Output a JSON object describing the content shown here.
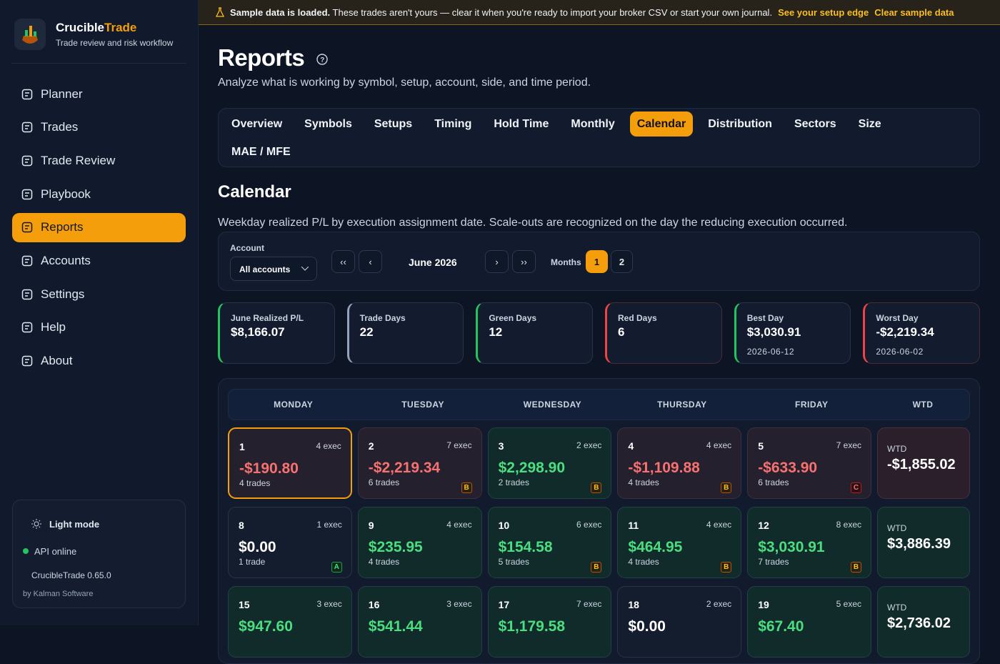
{
  "banner": {
    "bold": "Sample data is loaded.",
    "text": "These trades aren't yours — clear it when you're ready to import your broker CSV or start your own journal.",
    "link_primary": "See your setup edge",
    "link_secondary": "Clear sample data"
  },
  "brand": {
    "name_first": "Crucible",
    "name_second": "Trade",
    "tagline": "Trade review and risk workflow"
  },
  "nav": {
    "items": [
      "Planner",
      "Trades",
      "Trade Review",
      "Playbook",
      "Reports",
      "Accounts",
      "Settings",
      "Help",
      "About"
    ],
    "active": 4
  },
  "sidebar_footer": {
    "theme": "Light mode",
    "status": "API online",
    "version": "CrucibleTrade 0.65.0",
    "credit": "by Kalman Software"
  },
  "header": {
    "title": "Reports",
    "subtitle": "Analyze what is working by symbol, setup, account, side, and time period."
  },
  "tabs": {
    "items": [
      "Overview",
      "Symbols",
      "Setups",
      "Timing",
      "Hold Time",
      "Monthly",
      "Calendar",
      "Distribution",
      "Sectors",
      "Size",
      "MAE / MFE"
    ],
    "active": 6
  },
  "section": {
    "title": "Calendar",
    "description": "Weekday realized P/L by execution assignment date. Scale-outs are recognized on the day the reducing execution occurred."
  },
  "controls": {
    "account_label": "Account",
    "account_value": "All accounts",
    "month": "June 2026",
    "months_label": "Months",
    "months_options": [
      "1",
      "2"
    ],
    "months_active": 0
  },
  "stats": [
    {
      "label": "June Realized P/L",
      "value": "$8,166.07",
      "accent": "#22c55e"
    },
    {
      "label": "Trade Days",
      "value": "22",
      "accent": "#94a3b8"
    },
    {
      "label": "Green Days",
      "value": "12",
      "accent": "#22c55e"
    },
    {
      "label": "Red Days",
      "value": "6",
      "accent": "#ef4444"
    },
    {
      "label": "Best Day",
      "value": "$3,030.91",
      "sub": "2026-06-12",
      "accent": "#22c55e"
    },
    {
      "label": "Worst Day",
      "value": "-$2,219.34",
      "sub": "2026-06-02",
      "accent": "#ef4444"
    }
  ],
  "calendar": {
    "headers": [
      "MONDAY",
      "TUESDAY",
      "WEDNESDAY",
      "THURSDAY",
      "FRIDAY",
      "WTD"
    ],
    "selected": [
      0,
      0
    ],
    "weeks": [
      {
        "days": [
          {
            "day": "1",
            "exec": "4 exec",
            "pnl": "-$190.80",
            "trades": "4 trades"
          },
          {
            "day": "2",
            "exec": "7 exec",
            "pnl": "-$2,219.34",
            "trades": "6 trades",
            "grade": "B"
          },
          {
            "day": "3",
            "exec": "2 exec",
            "pnl": "$2,298.90",
            "trades": "2 trades",
            "grade": "B"
          },
          {
            "day": "4",
            "exec": "4 exec",
            "pnl": "-$1,109.88",
            "trades": "4 trades",
            "grade": "B"
          },
          {
            "day": "5",
            "exec": "7 exec",
            "pnl": "-$633.90",
            "trades": "6 trades",
            "grade": "C"
          }
        ],
        "wtd_label": "WTD",
        "wtd": "-$1,855.02"
      },
      {
        "days": [
          {
            "day": "8",
            "exec": "1 exec",
            "pnl": "$0.00",
            "trades": "1 trade",
            "grade": "A"
          },
          {
            "day": "9",
            "exec": "4 exec",
            "pnl": "$235.95",
            "trades": "4 trades"
          },
          {
            "day": "10",
            "exec": "6 exec",
            "pnl": "$154.58",
            "trades": "5 trades",
            "grade": "B"
          },
          {
            "day": "11",
            "exec": "4 exec",
            "pnl": "$464.95",
            "trades": "4 trades",
            "grade": "B"
          },
          {
            "day": "12",
            "exec": "8 exec",
            "pnl": "$3,030.91",
            "trades": "7 trades",
            "grade": "B"
          }
        ],
        "wtd_label": "WTD",
        "wtd": "$3,886.39"
      },
      {
        "days": [
          {
            "day": "15",
            "exec": "3 exec",
            "pnl": "$947.60"
          },
          {
            "day": "16",
            "exec": "3 exec",
            "pnl": "$541.44"
          },
          {
            "day": "17",
            "exec": "7 exec",
            "pnl": "$1,179.58"
          },
          {
            "day": "18",
            "exec": "2 exec",
            "pnl": "$0.00"
          },
          {
            "day": "19",
            "exec": "5 exec",
            "pnl": "$67.40"
          }
        ],
        "wtd_label": "WTD",
        "wtd": "$2,736.02"
      }
    ]
  }
}
